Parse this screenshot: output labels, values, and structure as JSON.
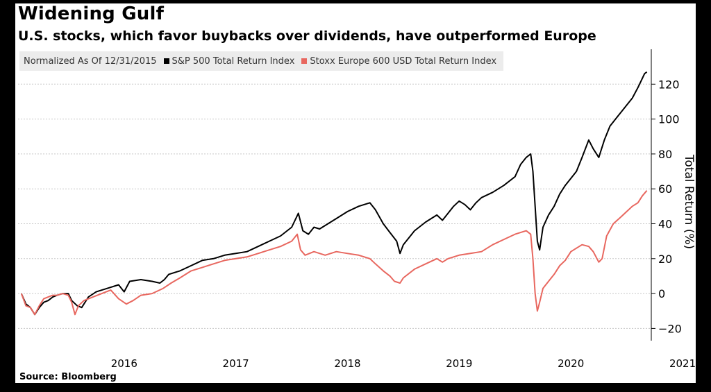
{
  "title": "Widening Gulf",
  "subtitle": "U.S. stocks, which favor buybacks over dividends, have outperformed Europe",
  "source": "Source: Bloomberg",
  "legend": {
    "note": "Normalized As Of 12/31/2015",
    "items": [
      {
        "label": "S&P 500 Total Return Index",
        "color": "#000000"
      },
      {
        "label": "Stoxx Europe 600 USD Total Return Index",
        "color": "#e8675f"
      }
    ]
  },
  "chart_data": {
    "type": "line",
    "ylabel": "Total Return (%)",
    "ylim": [
      -27,
      140
    ],
    "xlim": [
      2015.55,
      2021.22
    ],
    "yticks": [
      -20,
      0,
      20,
      40,
      60,
      80,
      100,
      120
    ],
    "xticks": [
      2016,
      2017,
      2018,
      2019,
      2020,
      2021
    ],
    "grid": true,
    "legend_position": "top-left",
    "series": [
      {
        "name": "S&P 500 Total Return Index",
        "color": "#000000",
        "points": [
          [
            2015.58,
            0
          ],
          [
            2015.62,
            -6
          ],
          [
            2015.66,
            -8
          ],
          [
            2015.7,
            -12
          ],
          [
            2015.74,
            -8
          ],
          [
            2015.78,
            -5
          ],
          [
            2015.82,
            -4
          ],
          [
            2015.86,
            -2
          ],
          [
            2015.9,
            -1
          ],
          [
            2015.95,
            0
          ],
          [
            2016.0,
            0
          ],
          [
            2016.03,
            -4
          ],
          [
            2016.08,
            -7
          ],
          [
            2016.12,
            -8
          ],
          [
            2016.18,
            -2
          ],
          [
            2016.25,
            1
          ],
          [
            2016.35,
            3
          ],
          [
            2016.45,
            5
          ],
          [
            2016.5,
            1
          ],
          [
            2016.55,
            7
          ],
          [
            2016.65,
            8
          ],
          [
            2016.75,
            7
          ],
          [
            2016.82,
            6
          ],
          [
            2016.86,
            8
          ],
          [
            2016.9,
            11
          ],
          [
            2017.0,
            13
          ],
          [
            2017.1,
            16
          ],
          [
            2017.2,
            19
          ],
          [
            2017.3,
            20
          ],
          [
            2017.4,
            22
          ],
          [
            2017.5,
            23
          ],
          [
            2017.6,
            24
          ],
          [
            2017.7,
            27
          ],
          [
            2017.8,
            30
          ],
          [
            2017.9,
            33
          ],
          [
            2018.0,
            38
          ],
          [
            2018.06,
            46
          ],
          [
            2018.1,
            36
          ],
          [
            2018.15,
            34
          ],
          [
            2018.2,
            38
          ],
          [
            2018.25,
            37
          ],
          [
            2018.3,
            39
          ],
          [
            2018.4,
            43
          ],
          [
            2018.5,
            47
          ],
          [
            2018.6,
            50
          ],
          [
            2018.7,
            52
          ],
          [
            2018.75,
            48
          ],
          [
            2018.82,
            40
          ],
          [
            2018.88,
            35
          ],
          [
            2018.94,
            30
          ],
          [
            2018.97,
            23
          ],
          [
            2019.0,
            28
          ],
          [
            2019.1,
            36
          ],
          [
            2019.2,
            41
          ],
          [
            2019.3,
            45
          ],
          [
            2019.35,
            42
          ],
          [
            2019.4,
            46
          ],
          [
            2019.45,
            50
          ],
          [
            2019.5,
            53
          ],
          [
            2019.55,
            51
          ],
          [
            2019.6,
            48
          ],
          [
            2019.65,
            52
          ],
          [
            2019.7,
            55
          ],
          [
            2019.8,
            58
          ],
          [
            2019.9,
            62
          ],
          [
            2020.0,
            67
          ],
          [
            2020.05,
            74
          ],
          [
            2020.1,
            78
          ],
          [
            2020.14,
            80
          ],
          [
            2020.16,
            70
          ],
          [
            2020.18,
            50
          ],
          [
            2020.2,
            30
          ],
          [
            2020.22,
            25
          ],
          [
            2020.25,
            38
          ],
          [
            2020.3,
            45
          ],
          [
            2020.35,
            50
          ],
          [
            2020.4,
            57
          ],
          [
            2020.45,
            62
          ],
          [
            2020.5,
            66
          ],
          [
            2020.55,
            70
          ],
          [
            2020.6,
            78
          ],
          [
            2020.66,
            88
          ],
          [
            2020.7,
            83
          ],
          [
            2020.75,
            78
          ],
          [
            2020.8,
            88
          ],
          [
            2020.85,
            96
          ],
          [
            2020.9,
            100
          ],
          [
            2020.95,
            104
          ],
          [
            2021.0,
            108
          ],
          [
            2021.05,
            112
          ],
          [
            2021.1,
            118
          ],
          [
            2021.13,
            122
          ],
          [
            2021.16,
            126
          ],
          [
            2021.18,
            127
          ]
        ]
      },
      {
        "name": "Stoxx Europe 600 USD Total Return Index",
        "color": "#e8675f",
        "points": [
          [
            2015.58,
            0
          ],
          [
            2015.62,
            -7
          ],
          [
            2015.66,
            -8
          ],
          [
            2015.7,
            -12
          ],
          [
            2015.74,
            -7
          ],
          [
            2015.78,
            -3
          ],
          [
            2015.82,
            -2
          ],
          [
            2015.86,
            -1
          ],
          [
            2015.9,
            -1
          ],
          [
            2015.95,
            0
          ],
          [
            2016.0,
            -1
          ],
          [
            2016.03,
            -5
          ],
          [
            2016.06,
            -12
          ],
          [
            2016.09,
            -7
          ],
          [
            2016.14,
            -4
          ],
          [
            2016.22,
            -2
          ],
          [
            2016.3,
            0
          ],
          [
            2016.38,
            2
          ],
          [
            2016.45,
            -3
          ],
          [
            2016.52,
            -6
          ],
          [
            2016.58,
            -4
          ],
          [
            2016.65,
            -1
          ],
          [
            2016.75,
            0
          ],
          [
            2016.85,
            3
          ],
          [
            2016.92,
            6
          ],
          [
            2017.0,
            9
          ],
          [
            2017.1,
            13
          ],
          [
            2017.2,
            15
          ],
          [
            2017.3,
            17
          ],
          [
            2017.4,
            19
          ],
          [
            2017.5,
            20
          ],
          [
            2017.6,
            21
          ],
          [
            2017.7,
            23
          ],
          [
            2017.8,
            25
          ],
          [
            2017.9,
            27
          ],
          [
            2018.0,
            30
          ],
          [
            2018.05,
            34
          ],
          [
            2018.08,
            25
          ],
          [
            2018.12,
            22
          ],
          [
            2018.2,
            24
          ],
          [
            2018.3,
            22
          ],
          [
            2018.4,
            24
          ],
          [
            2018.5,
            23
          ],
          [
            2018.6,
            22
          ],
          [
            2018.7,
            20
          ],
          [
            2018.75,
            17
          ],
          [
            2018.82,
            13
          ],
          [
            2018.88,
            10
          ],
          [
            2018.92,
            7
          ],
          [
            2018.97,
            6
          ],
          [
            2019.0,
            9
          ],
          [
            2019.1,
            14
          ],
          [
            2019.2,
            17
          ],
          [
            2019.3,
            20
          ],
          [
            2019.35,
            18
          ],
          [
            2019.4,
            20
          ],
          [
            2019.5,
            22
          ],
          [
            2019.6,
            23
          ],
          [
            2019.7,
            24
          ],
          [
            2019.8,
            28
          ],
          [
            2019.9,
            31
          ],
          [
            2020.0,
            34
          ],
          [
            2020.05,
            35
          ],
          [
            2020.1,
            36
          ],
          [
            2020.14,
            34
          ],
          [
            2020.16,
            20
          ],
          [
            2020.18,
            0
          ],
          [
            2020.2,
            -10
          ],
          [
            2020.22,
            -5
          ],
          [
            2020.25,
            3
          ],
          [
            2020.3,
            7
          ],
          [
            2020.35,
            11
          ],
          [
            2020.4,
            16
          ],
          [
            2020.45,
            19
          ],
          [
            2020.5,
            24
          ],
          [
            2020.55,
            26
          ],
          [
            2020.6,
            28
          ],
          [
            2020.66,
            27
          ],
          [
            2020.7,
            24
          ],
          [
            2020.75,
            18
          ],
          [
            2020.78,
            20
          ],
          [
            2020.82,
            33
          ],
          [
            2020.88,
            40
          ],
          [
            2020.95,
            44
          ],
          [
            2021.0,
            47
          ],
          [
            2021.05,
            50
          ],
          [
            2021.1,
            52
          ],
          [
            2021.14,
            56
          ],
          [
            2021.18,
            59
          ]
        ]
      }
    ]
  }
}
